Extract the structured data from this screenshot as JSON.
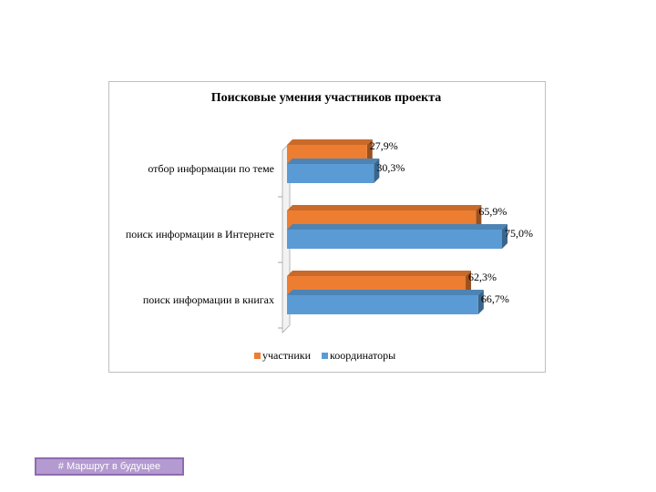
{
  "chart_data": {
    "type": "bar3d-horizontal",
    "title": "Поисковые умения участников проекта",
    "categories": [
      "отбор информации по теме",
      "поиск информации в Интернете",
      "поиск информации в книгах"
    ],
    "series": [
      {
        "name": "участники",
        "color": "#ed7d31",
        "values": [
          27.9,
          65.9,
          62.3
        ],
        "value_labels": [
          "27,9%",
          "65,9%",
          "62,3%"
        ]
      },
      {
        "name": "координаторы",
        "color": "#5b9bd5",
        "values": [
          30.3,
          75.0,
          66.7
        ],
        "value_labels": [
          "30,3%",
          "75,0%",
          "66,7%"
        ]
      }
    ],
    "legend": "bottom"
  },
  "footer": {
    "button": "# Маршрут в будущее"
  }
}
